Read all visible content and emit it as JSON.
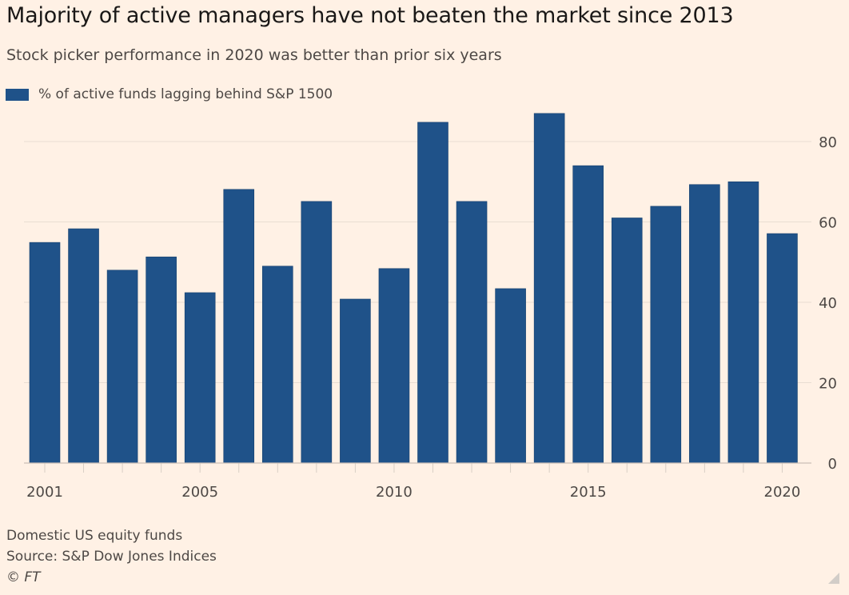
{
  "title": "Majority of active managers have not beaten the market since 2013",
  "subtitle": "Stock picker performance in 2020 was better than prior six years",
  "legend": {
    "label": "% of active funds lagging behind S&P 1500",
    "color": "#1f5289"
  },
  "footer": {
    "note": "Domestic US equity funds",
    "source": "Source: S&P Dow Jones Indices",
    "copyright": "© FT"
  },
  "chart_data": {
    "type": "bar",
    "title": "Majority of active managers have not beaten the market since 2013",
    "subtitle": "Stock picker performance in 2020 was better than prior six years",
    "xlabel": "",
    "ylabel": "",
    "categories": [
      "2001",
      "2002",
      "2003",
      "2004",
      "2005",
      "2006",
      "2007",
      "2008",
      "2009",
      "2010",
      "2011",
      "2012",
      "2013",
      "2014",
      "2015",
      "2016",
      "2017",
      "2018",
      "2019",
      "2020"
    ],
    "series": [
      {
        "name": "% of active funds lagging behind S&P 1500",
        "values": [
          54.9,
          58.3,
          48.0,
          51.3,
          42.4,
          68.1,
          49.0,
          65.1,
          40.8,
          48.4,
          84.8,
          65.1,
          43.4,
          87.0,
          74.0,
          61.0,
          63.9,
          69.3,
          70.0,
          57.1
        ],
        "color": "#1f5289"
      }
    ],
    "x_tick_labels": [
      "2001",
      "2005",
      "2010",
      "2015",
      "2020"
    ],
    "y_ticks": [
      0,
      20,
      40,
      60,
      80
    ],
    "ylim": [
      0,
      88
    ],
    "y_axis_side": "right",
    "grid": true,
    "legend_position": "top-left"
  }
}
